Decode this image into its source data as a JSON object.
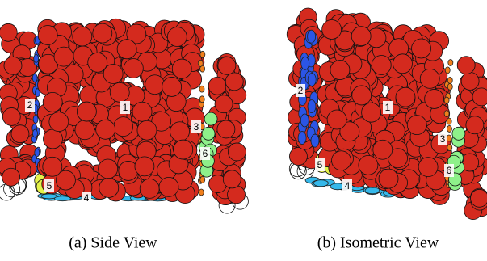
{
  "panels": [
    {
      "caption": "(a) Side View",
      "labels": [
        "1",
        "2",
        "3",
        "4",
        "5",
        "6"
      ]
    },
    {
      "caption": "(b) Isometric View",
      "labels": [
        "1",
        "2",
        "3",
        "4",
        "5",
        "6"
      ]
    }
  ]
}
